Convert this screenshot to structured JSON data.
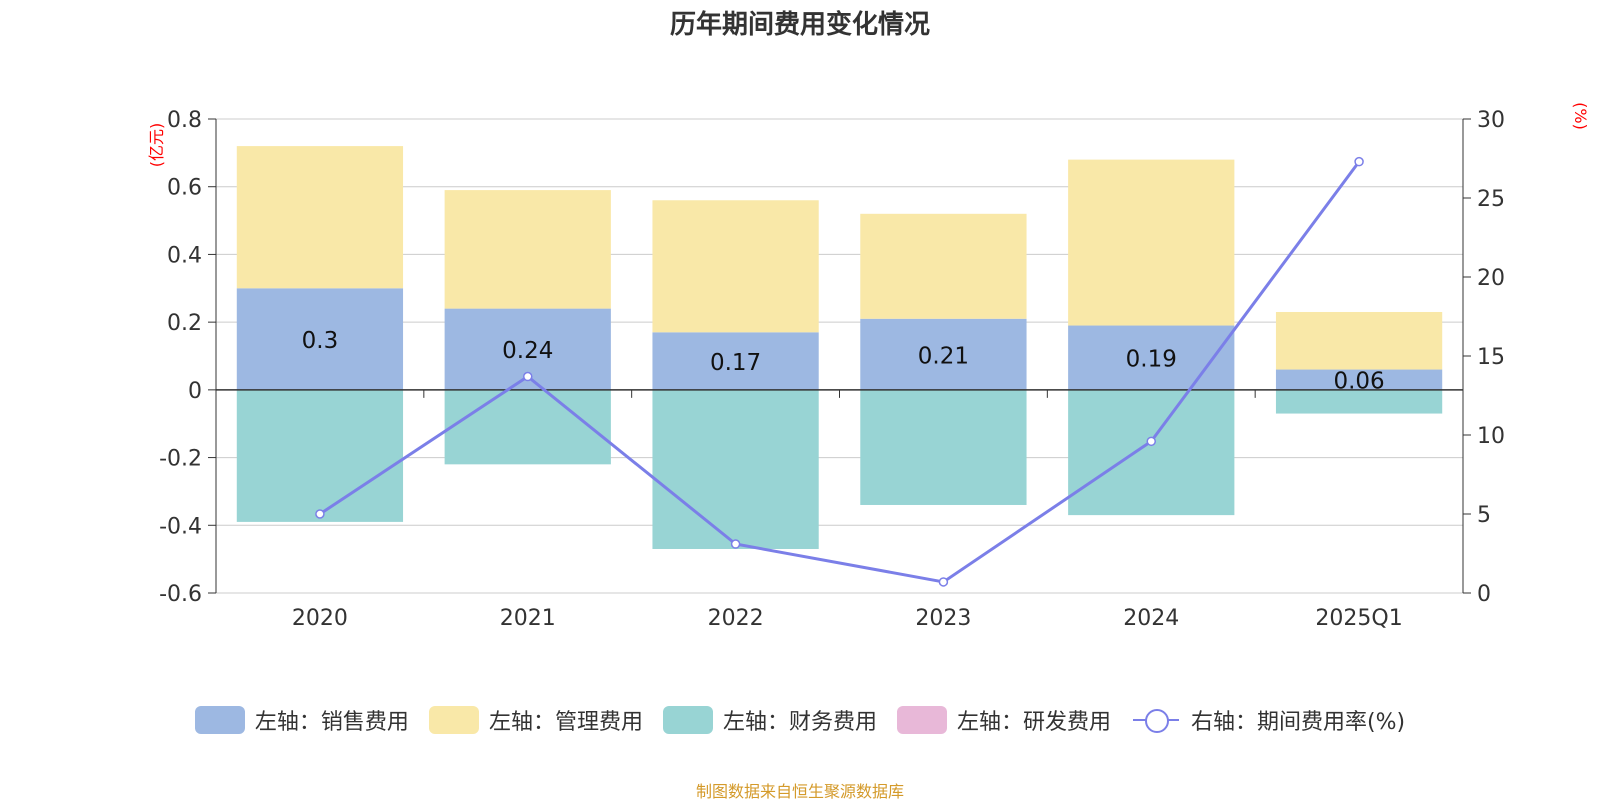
{
  "title": "历年期间费用变化情况",
  "source": "制图数据来自恒生聚源数据库",
  "chart_data": {
    "type": "bar",
    "categories": [
      "2020",
      "2021",
      "2022",
      "2023",
      "2024",
      "2025Q1"
    ],
    "series": [
      {
        "name": "左轴：销售费用",
        "axis": "left",
        "color": "#9db8e2",
        "values": [
          0.3,
          0.24,
          0.17,
          0.21,
          0.19,
          0.06
        ],
        "labels": [
          "0.3",
          "0.24",
          "0.17",
          "0.21",
          "0.19",
          "0.06"
        ]
      },
      {
        "name": "左轴：管理费用",
        "axis": "left",
        "color": "#f9e8a8",
        "values": [
          0.42,
          0.35,
          0.39,
          0.31,
          0.49,
          0.17
        ]
      },
      {
        "name": "左轴：财务费用",
        "axis": "left",
        "color": "#98d4d4",
        "values": [
          -0.39,
          -0.22,
          -0.47,
          -0.34,
          -0.37,
          -0.07
        ]
      },
      {
        "name": "左轴：研发费用",
        "axis": "left",
        "color": "#e8b8d8",
        "values": [
          0,
          0,
          0,
          0,
          0,
          0
        ]
      },
      {
        "name": "右轴：期间费用率(%)",
        "axis": "right",
        "type": "line",
        "color": "#7b7fe8",
        "values": [
          5.0,
          13.7,
          3.1,
          0.7,
          9.6,
          27.3
        ]
      }
    ],
    "left_axis": {
      "unit": "(亿元)",
      "min": -0.6,
      "max": 0.8,
      "ticks": [
        -0.6,
        -0.4,
        -0.2,
        0,
        0.2,
        0.4,
        0.6,
        0.8
      ],
      "tick_labels": [
        "-0.6",
        "-0.4",
        "-0.2",
        "0",
        "0.2",
        "0.4",
        "0.6",
        "0.8"
      ]
    },
    "right_axis": {
      "unit": "(%)",
      "min": 0,
      "max": 30,
      "ticks": [
        0,
        5,
        10,
        15,
        20,
        25,
        30
      ],
      "tick_labels": [
        "0",
        "5",
        "10",
        "15",
        "20",
        "25",
        "30"
      ]
    },
    "grid": true,
    "legend_position": "bottom",
    "unit_color": "#ff0000"
  }
}
